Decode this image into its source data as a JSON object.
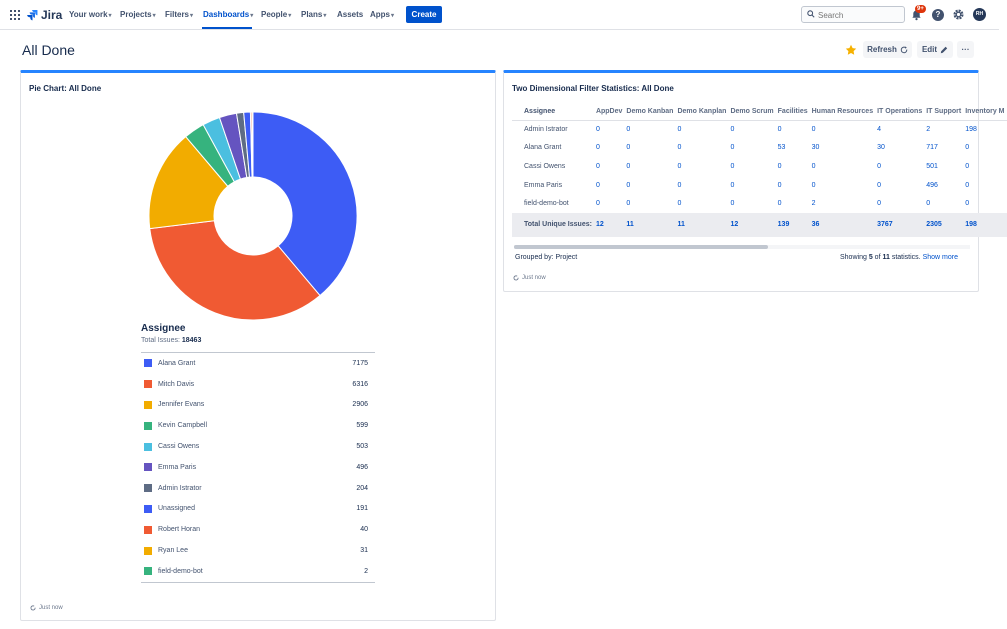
{
  "nav": {
    "logo": "Jira",
    "items": [
      {
        "label": "Your work",
        "chevron": true
      },
      {
        "label": "Projects",
        "chevron": true
      },
      {
        "label": "Filters",
        "chevron": true
      },
      {
        "label": "Dashboards",
        "chevron": true,
        "active": true
      },
      {
        "label": "People",
        "chevron": true
      },
      {
        "label": "Plans",
        "chevron": true
      },
      {
        "label": "Assets",
        "chevron": false
      },
      {
        "label": "Apps",
        "chevron": true
      }
    ],
    "create_label": "Create",
    "search_placeholder": "Search",
    "notification_badge": "9+",
    "help_label": "?",
    "avatar_initials": "RH",
    "accent_color": "#0052cc"
  },
  "page": {
    "title": "All Done",
    "refresh_label": "Refresh",
    "edit_label": "Edit",
    "more_label": "···",
    "starred": true,
    "star_color": "#f6b100"
  },
  "pie_gadget": {
    "title": "Pie Chart: All Done",
    "legend_title": "Assignee",
    "total_label": "Total Issues:",
    "total_value": "18463",
    "updated": "Just now"
  },
  "chart_data": {
    "type": "pie",
    "donut": true,
    "categories": [
      "Alana Grant",
      "Mitch Davis",
      "Jennifer Evans",
      "Kevin Campbell",
      "Cassi Owens",
      "Emma Paris",
      "Admin Istrator",
      "Unassigned",
      "Robert Horan",
      "Ryan Lee",
      "field-demo-bot"
    ],
    "values": [
      7175,
      6316,
      2906,
      599,
      503,
      496,
      204,
      191,
      40,
      31,
      2
    ],
    "colors": [
      "#3d5cf5",
      "#f05a33",
      "#f2ac00",
      "#36b37e",
      "#4bbfe0",
      "#6554c0",
      "#5e6c84",
      "#3d5cf5",
      "#f05a33",
      "#f2ac00",
      "#36b37e"
    ],
    "total": 18463
  },
  "stats_gadget": {
    "title": "Two Dimensional Filter Statistics: All Done",
    "row_header": "Assignee",
    "columns": [
      "AppDev",
      "Demo Kanban",
      "Demo Kanplan",
      "Demo Scrum",
      "Facilities",
      "Human Resources",
      "IT Operations",
      "IT Support",
      "Inventory M"
    ],
    "rows": [
      {
        "name": "Admin Istrator",
        "values": [
          "0",
          "0",
          "0",
          "0",
          "0",
          "0",
          "4",
          "2",
          "198"
        ]
      },
      {
        "name": "Alana Grant",
        "values": [
          "0",
          "0",
          "0",
          "0",
          "53",
          "30",
          "30",
          "717",
          "0"
        ]
      },
      {
        "name": "Cassi Owens",
        "values": [
          "0",
          "0",
          "0",
          "0",
          "0",
          "0",
          "0",
          "501",
          "0"
        ]
      },
      {
        "name": "Emma Paris",
        "values": [
          "0",
          "0",
          "0",
          "0",
          "0",
          "0",
          "0",
          "496",
          "0"
        ]
      },
      {
        "name": "field-demo-bot",
        "values": [
          "0",
          "0",
          "0",
          "0",
          "0",
          "2",
          "0",
          "0",
          "0"
        ]
      }
    ],
    "total_row": {
      "name": "Total Unique Issues:",
      "values": [
        "12",
        "11",
        "11",
        "12",
        "139",
        "36",
        "3767",
        "2305",
        "198"
      ]
    },
    "grouped_by": "Grouped by: Project",
    "showing_prefix": "Showing",
    "showing_count": "5",
    "showing_of": "of",
    "showing_total": "11",
    "showing_suffix": "statistics.",
    "show_more": "Show more",
    "updated": "Just now"
  }
}
